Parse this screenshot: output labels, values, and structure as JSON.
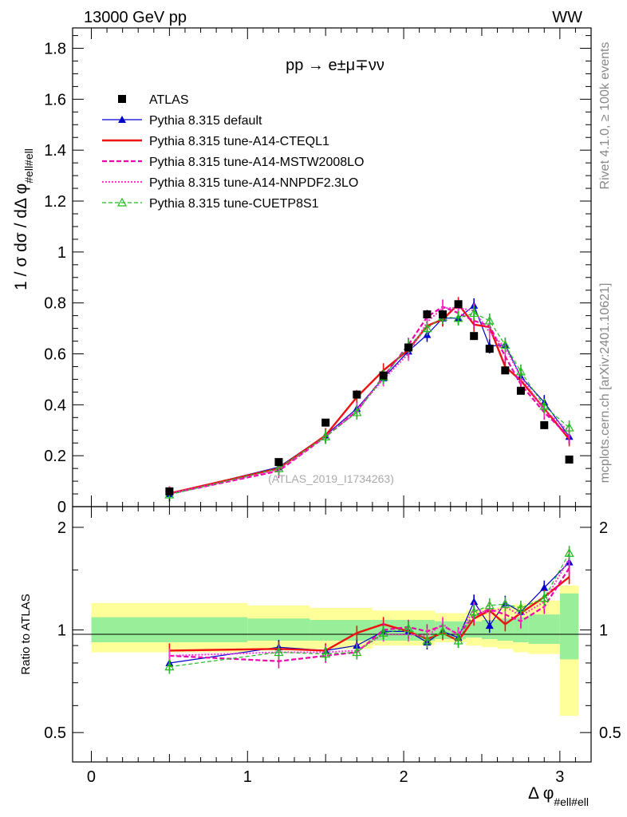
{
  "header": {
    "energy_label": "13000 GeV pp",
    "process_tag": "WW"
  },
  "side_labels": {
    "rivet": "Rivet 4.1.0, ≥ 100k events",
    "mcplots": "mcplots.cern.ch [arXiv:2401.10621]"
  },
  "watermark": "(ATLAS_2019_I1734263)",
  "colors": {
    "atlas": "#000000",
    "default": "#0000cc",
    "cteql1": "#ee1111",
    "mstw": "#ee00aa",
    "nnpdf": "#ff33cc",
    "cuetp8s1": "#22bb22",
    "band_stat": "#99ee99",
    "band_tot": "#ffff99"
  },
  "chart_data": [
    {
      "panel": "main",
      "type": "line",
      "title": "pp → e±μ∓νν",
      "ylabel": "1 / σ  dσ / dΔ φ #ell#ell",
      "ylabel_main": "1 / σ  dσ / dΔ φ",
      "ylabel_sub": "#ell#ell",
      "xlabel": "Δ φ #ell#ell",
      "xlabel_main": "Δ φ",
      "xlabel_sub": "#ell#ell",
      "xlim": [
        -0.12,
        3.2
      ],
      "ylim": [
        0,
        1.88
      ],
      "yticks": [
        0,
        0.2,
        0.4,
        0.6,
        0.8,
        1,
        1.2,
        1.4,
        1.6,
        1.8
      ],
      "ytick_labels": [
        "0",
        "0.2",
        "0.4",
        "0.6",
        "0.8",
        "1",
        "1.2",
        "1.4",
        "1.6",
        "1.8"
      ],
      "x": [
        0.5,
        1.2,
        1.5,
        1.7,
        1.87,
        2.03,
        2.15,
        2.25,
        2.35,
        2.45,
        2.55,
        2.65,
        2.75,
        2.9,
        3.06
      ],
      "series": [
        {
          "name": "ATLAS",
          "key": "atlas",
          "values": [
            0.06,
            0.175,
            0.33,
            0.44,
            0.515,
            0.625,
            0.755,
            0.755,
            0.795,
            0.67,
            0.62,
            0.535,
            0.455,
            0.32,
            0.185
          ]
        },
        {
          "name": "Pythia 8.315 default",
          "key": "default",
          "values": [
            0.05,
            0.155,
            0.28,
            0.385,
            0.505,
            0.61,
            0.675,
            0.74,
            0.74,
            0.79,
            0.63,
            0.635,
            0.51,
            0.41,
            0.275
          ]
        },
        {
          "name": "Pythia 8.315 tune-A14-CTEQL1",
          "key": "cteql1",
          "values": [
            0.052,
            0.15,
            0.28,
            0.43,
            0.535,
            0.615,
            0.71,
            0.735,
            0.795,
            0.715,
            0.705,
            0.55,
            0.495,
            0.385,
            0.265
          ]
        },
        {
          "name": "Pythia 8.315 tune-A14-MSTW2008LO",
          "key": "mstw",
          "values": [
            0.05,
            0.14,
            0.275,
            0.375,
            0.51,
            0.635,
            0.745,
            0.785,
            0.76,
            0.73,
            0.71,
            0.59,
            0.48,
            0.37,
            0.275
          ]
        },
        {
          "name": "Pythia 8.315 tune-A14-NNPDF2.3LO",
          "key": "nnpdf",
          "values": [
            0.05,
            0.145,
            0.275,
            0.38,
            0.5,
            0.6,
            0.725,
            0.78,
            0.78,
            0.77,
            0.685,
            0.625,
            0.51,
            0.38,
            0.295
          ]
        },
        {
          "name": "Pythia 8.315 tune-CUETP8S1",
          "key": "cuetp8s1",
          "values": [
            0.047,
            0.15,
            0.275,
            0.37,
            0.51,
            0.63,
            0.7,
            0.745,
            0.74,
            0.76,
            0.73,
            0.635,
            0.53,
            0.395,
            0.31
          ]
        }
      ]
    },
    {
      "panel": "ratio",
      "type": "line",
      "ylabel": "Ratio to ATLAS",
      "ylim": [
        0.41,
        2.3
      ],
      "ylog": true,
      "yticks": [
        0.5,
        1,
        2
      ],
      "ytick_labels": [
        "0.5",
        "1",
        "2"
      ],
      "xlim": [
        -0.12,
        3.2
      ],
      "xticks": [
        0,
        1,
        2,
        3
      ],
      "xtick_labels": [
        "0",
        "1",
        "2",
        "3"
      ],
      "x": [
        0.5,
        1.2,
        1.5,
        1.7,
        1.87,
        2.03,
        2.15,
        2.25,
        2.35,
        2.45,
        2.55,
        2.65,
        2.75,
        2.9,
        3.06
      ],
      "bands": {
        "edges": [
          0,
          1,
          1.4,
          1.8,
          2.2,
          2.4,
          2.5,
          2.6,
          2.7,
          2.8,
          3.0,
          3.12
        ],
        "stat_lo": [
          0.92,
          0.93,
          0.93,
          0.93,
          0.94,
          0.95,
          0.94,
          0.93,
          0.92,
          0.91,
          0.82
        ],
        "stat_hi": [
          1.09,
          1.08,
          1.07,
          1.07,
          1.06,
          1.06,
          1.07,
          1.08,
          1.09,
          1.11,
          1.28
        ],
        "tot_lo": [
          0.86,
          0.87,
          0.88,
          0.9,
          0.92,
          0.9,
          0.89,
          0.88,
          0.86,
          0.85,
          0.56
        ],
        "tot_hi": [
          1.2,
          1.18,
          1.16,
          1.14,
          1.12,
          1.14,
          1.16,
          1.17,
          1.19,
          1.22,
          1.35
        ]
      },
      "series": [
        {
          "name": "Pythia 8.315 default",
          "key": "default",
          "values": [
            0.8,
            0.89,
            0.87,
            0.9,
            0.99,
            0.99,
            0.92,
            0.99,
            0.95,
            1.21,
            1.03,
            1.2,
            1.13,
            1.33,
            1.58
          ]
        },
        {
          "name": "Pythia 8.315 tune-A14-CTEQL1",
          "key": "cteql1",
          "values": [
            0.87,
            0.88,
            0.87,
            0.98,
            1.04,
            0.99,
            0.94,
            0.98,
            0.93,
            1.08,
            1.14,
            1.04,
            1.12,
            1.25,
            1.43
          ]
        },
        {
          "name": "Pythia 8.315 tune-A14-MSTW2008LO",
          "key": "mstw",
          "values": [
            0.84,
            0.81,
            0.84,
            0.86,
            1.0,
            1.02,
            0.99,
            1.03,
            0.97,
            1.1,
            1.15,
            1.11,
            1.06,
            1.17,
            1.52
          ]
        },
        {
          "name": "Pythia 8.315 tune-A14-NNPDF2.3LO",
          "key": "nnpdf",
          "values": [
            0.84,
            0.86,
            0.86,
            0.87,
            0.97,
            0.97,
            0.96,
            1.04,
            0.96,
            1.15,
            1.12,
            1.17,
            1.1,
            1.21,
            1.62
          ]
        },
        {
          "name": "Pythia 8.315 tune-CUETP8S1",
          "key": "cuetp8s1",
          "values": [
            0.78,
            0.86,
            0.85,
            0.86,
            0.98,
            1.01,
            0.93,
            0.99,
            0.93,
            1.13,
            1.18,
            1.19,
            1.16,
            1.24,
            1.68
          ]
        }
      ]
    }
  ]
}
